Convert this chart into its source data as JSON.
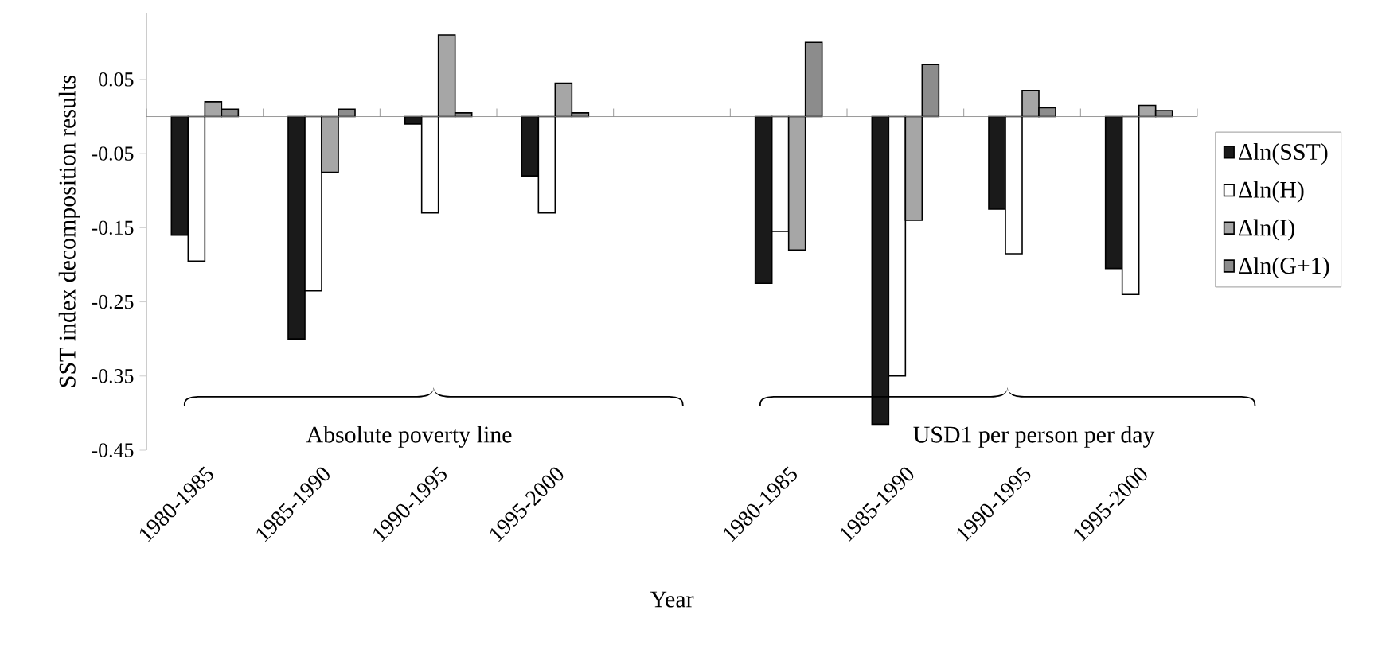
{
  "chart_data": {
    "type": "bar",
    "xlabel": "Year",
    "ylabel": "SST index decomposition results",
    "categories": [
      "1980-1985",
      "1985-1990",
      "1990-1995",
      "1995-2000",
      null,
      "1980-1985",
      "1985-1990",
      "1990-1995",
      "1995-2000"
    ],
    "series": [
      {
        "name": "Δln(SST)",
        "color": "#1a1a1a",
        "values": [
          -0.16,
          -0.3,
          -0.01,
          -0.08,
          null,
          -0.225,
          -0.415,
          -0.125,
          -0.205
        ]
      },
      {
        "name": "Δln(H)",
        "color": "#ffffff",
        "values": [
          -0.195,
          -0.235,
          -0.13,
          -0.13,
          null,
          -0.155,
          -0.35,
          -0.185,
          -0.24
        ]
      },
      {
        "name": "Δln(I)",
        "color": "#a6a6a6",
        "values": [
          0.02,
          -0.075,
          0.11,
          0.045,
          null,
          -0.18,
          -0.14,
          0.035,
          0.015
        ]
      },
      {
        "name": "Δln(G+1)",
        "color": "#8c8c8c",
        "values": [
          0.01,
          0.01,
          0.005,
          0.005,
          null,
          0.1,
          0.07,
          0.012,
          0.008
        ]
      }
    ],
    "ylim": [
      -0.45,
      0.14
    ],
    "yticks": [
      0.05,
      -0.05,
      -0.15,
      -0.25,
      -0.35,
      -0.45
    ],
    "annotations": [
      "Absolute poverty line",
      "USD1 per person per day"
    ],
    "legend": "right"
  }
}
